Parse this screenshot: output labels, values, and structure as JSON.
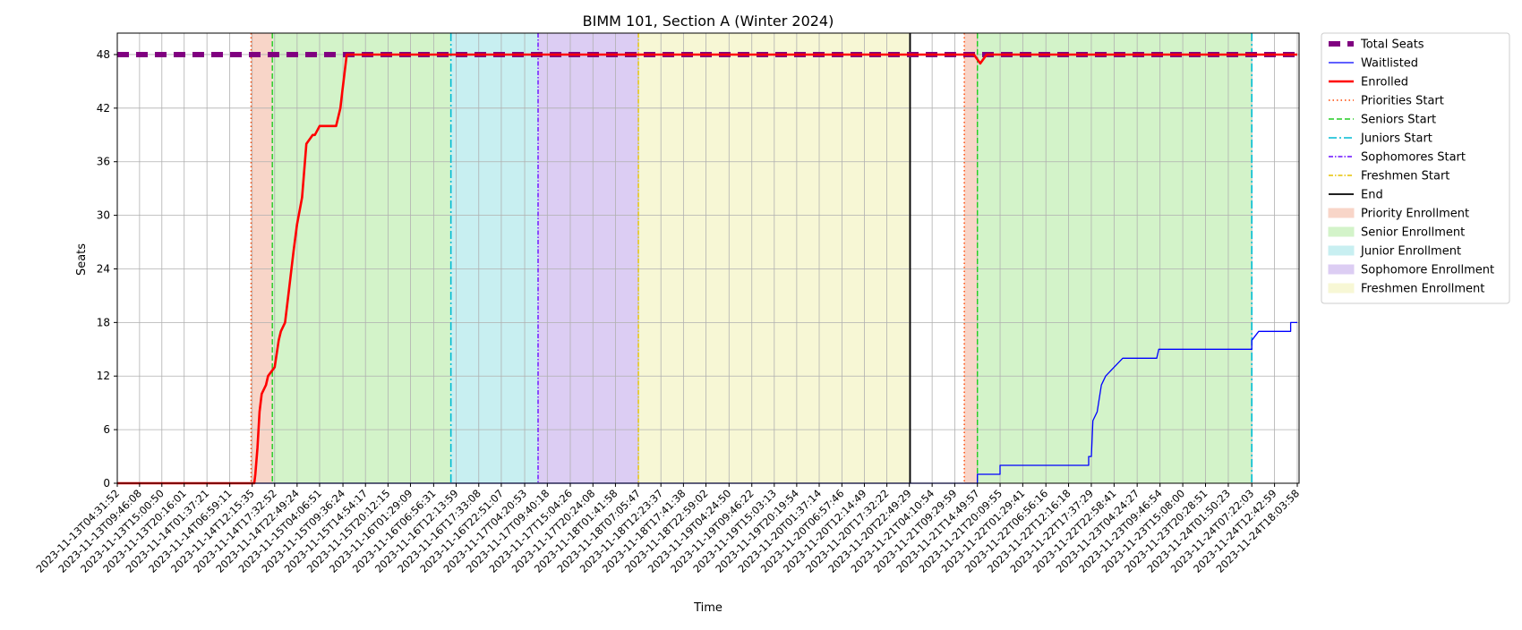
{
  "chart_data": {
    "type": "line",
    "title": "BIMM 101, Section A (Winter 2024)",
    "xlabel": "Time",
    "ylabel": "Seats",
    "ylim": [
      0,
      50.4
    ],
    "yticks": [
      0,
      6,
      12,
      18,
      24,
      30,
      36,
      42,
      48
    ],
    "x_tick_labels": [
      "2023-11-13T04:31:52",
      "2023-11-13T09:46:08",
      "2023-11-13T15:00:50",
      "2023-11-13T20:16:01",
      "2023-11-14T01:37:21",
      "2023-11-14T06:59:11",
      "2023-11-14T12:15:35",
      "2023-11-14T17:32:52",
      "2023-11-14T22:49:24",
      "2023-11-15T04:06:51",
      "2023-11-15T09:36:24",
      "2023-11-15T14:54:17",
      "2023-11-15T20:12:15",
      "2023-11-16T01:29:09",
      "2023-11-16T06:56:31",
      "2023-11-16T12:13:59",
      "2023-11-16T17:33:08",
      "2023-11-16T22:51:07",
      "2023-11-17T04:20:53",
      "2023-11-17T09:40:18",
      "2023-11-17T15:04:26",
      "2023-11-17T20:24:08",
      "2023-11-18T01:41:58",
      "2023-11-18T07:05:47",
      "2023-11-18T12:23:37",
      "2023-11-18T17:41:38",
      "2023-11-18T22:59:02",
      "2023-11-19T04:24:50",
      "2023-11-19T09:46:22",
      "2023-11-19T15:03:13",
      "2023-11-19T20:19:54",
      "2023-11-20T01:37:14",
      "2023-11-20T06:57:46",
      "2023-11-20T12:14:49",
      "2023-11-20T17:32:22",
      "2023-11-20T22:49:29",
      "2023-11-21T04:10:54",
      "2023-11-21T09:29:59",
      "2023-11-21T14:49:57",
      "2023-11-21T20:09:55",
      "2023-11-22T01:29:41",
      "2023-11-22T06:56:16",
      "2023-11-22T12:16:18",
      "2023-11-22T17:37:29",
      "2023-11-22T22:58:41",
      "2023-11-23T04:24:27",
      "2023-11-23T09:46:54",
      "2023-11-23T15:08:00",
      "2023-11-23T20:28:51",
      "2023-11-24T01:50:23",
      "2023-11-24T07:22:03",
      "2023-11-24T12:42:59",
      "2023-11-24T18:03:58"
    ],
    "grid": true,
    "legend_position": "outside-right",
    "series": [
      {
        "name": "Total Seats",
        "color": "#800080",
        "style": "dashed-thick",
        "points": [
          [
            "2023-11-13T04:31:52",
            48
          ],
          [
            "2023-11-24T18:03:58",
            48
          ]
        ]
      },
      {
        "name": "Waitlisted",
        "color": "#0000ff",
        "style": "solid-thin",
        "points": [
          [
            "2023-11-13T04:31:52",
            0
          ],
          [
            "2023-11-21T14:49:57",
            0
          ],
          [
            "2023-11-21T14:49:57",
            1
          ],
          [
            "2023-11-21T20:09:55",
            1
          ],
          [
            "2023-11-21T20:09:55",
            2
          ],
          [
            "2023-11-22T17:00:00",
            2
          ],
          [
            "2023-11-22T17:00:00",
            3
          ],
          [
            "2023-11-22T17:37:29",
            3
          ],
          [
            "2023-11-22T18:00:00",
            7
          ],
          [
            "2023-11-22T19:00:00",
            8
          ],
          [
            "2023-11-22T20:00:00",
            11
          ],
          [
            "2023-11-22T21:00:00",
            12
          ],
          [
            "2023-11-22T22:58:41",
            13
          ],
          [
            "2023-11-23T01:00:00",
            14
          ],
          [
            "2023-11-23T09:00:00",
            14
          ],
          [
            "2023-11-23T09:30:00",
            15
          ],
          [
            "2023-11-24T07:22:03",
            15
          ],
          [
            "2023-11-24T07:22:03",
            16
          ],
          [
            "2023-11-24T09:00:00",
            17
          ],
          [
            "2023-11-24T16:30:00",
            17
          ],
          [
            "2023-11-24T16:30:00",
            18
          ],
          [
            "2023-11-24T18:03:58",
            18
          ]
        ]
      },
      {
        "name": "Enrolled",
        "color": "#ff0000",
        "style": "solid-thick",
        "points": [
          [
            "2023-11-13T04:31:52",
            0
          ],
          [
            "2023-11-14T12:45:00",
            0
          ],
          [
            "2023-11-14T13:00:00",
            1
          ],
          [
            "2023-11-14T13:30:00",
            4
          ],
          [
            "2023-11-14T14:00:00",
            8
          ],
          [
            "2023-11-14T14:30:00",
            10
          ],
          [
            "2023-11-14T15:30:00",
            11
          ],
          [
            "2023-11-14T16:00:00",
            12
          ],
          [
            "2023-11-14T17:32:52",
            13
          ],
          [
            "2023-11-14T18:30:00",
            16
          ],
          [
            "2023-11-14T19:00:00",
            17
          ],
          [
            "2023-11-14T20:00:00",
            18
          ],
          [
            "2023-11-14T21:00:00",
            22
          ],
          [
            "2023-11-14T22:00:00",
            26
          ],
          [
            "2023-11-14T22:49:24",
            29
          ],
          [
            "2023-11-15T00:00:00",
            32
          ],
          [
            "2023-11-15T01:00:00",
            38
          ],
          [
            "2023-11-15T02:30:00",
            39
          ],
          [
            "2023-11-15T03:00:00",
            39
          ],
          [
            "2023-11-15T04:06:51",
            40
          ],
          [
            "2023-11-15T05:00:00",
            40
          ],
          [
            "2023-11-15T08:00:00",
            40
          ],
          [
            "2023-11-15T09:00:00",
            42
          ],
          [
            "2023-11-15T09:30:00",
            44
          ],
          [
            "2023-11-15T10:30:00",
            48
          ],
          [
            "2023-11-21T14:00:00",
            48
          ],
          [
            "2023-11-21T15:30:00",
            47
          ],
          [
            "2023-11-21T17:00:00",
            48
          ],
          [
            "2023-11-24T18:03:58",
            48
          ]
        ]
      }
    ],
    "vertical_lines": [
      {
        "name": "Priorities Start",
        "color": "#ff4500",
        "style": "dotted",
        "x": [
          "2023-11-14T12:00:00",
          "2023-11-21T11:45:00"
        ]
      },
      {
        "name": "Seniors Start",
        "color": "#22cc22",
        "style": "dashed",
        "x": [
          "2023-11-14T17:00:00",
          "2023-11-21T14:49:57"
        ]
      },
      {
        "name": "Juniors Start",
        "color": "#00bcd4",
        "style": "dashdot",
        "x": [
          "2023-11-16T11:00:00",
          "2023-11-24T07:22:03"
        ]
      },
      {
        "name": "Sophomores Start",
        "color": "#6a0dff",
        "style": "dashdot-dense",
        "x": [
          "2023-11-17T07:30:00"
        ]
      },
      {
        "name": "Freshmen Start",
        "color": "#e6c200",
        "style": "dashdot-dense",
        "x": [
          "2023-11-18T07:05:47"
        ]
      },
      {
        "name": "End",
        "color": "#000000",
        "style": "solid",
        "x": [
          "2023-11-20T23:00:00"
        ]
      }
    ],
    "shaded_regions": [
      {
        "name": "Priority Enrollment",
        "color": "#f8d5c8",
        "ranges": [
          [
            "2023-11-14T12:00:00",
            "2023-11-14T17:00:00"
          ],
          [
            "2023-11-21T11:45:00",
            "2023-11-21T14:49:57"
          ]
        ]
      },
      {
        "name": "Senior Enrollment",
        "color": "#d3f3c9",
        "ranges": [
          [
            "2023-11-14T17:00:00",
            "2023-11-16T11:00:00"
          ],
          [
            "2023-11-21T14:49:57",
            "2023-11-24T07:22:03"
          ]
        ]
      },
      {
        "name": "Junior Enrollment",
        "color": "#c8eff1",
        "ranges": [
          [
            "2023-11-16T11:00:00",
            "2023-11-17T07:30:00"
          ]
        ]
      },
      {
        "name": "Sophomore Enrollment",
        "color": "#dccdf3",
        "ranges": [
          [
            "2023-11-17T07:30:00",
            "2023-11-18T07:05:47"
          ]
        ]
      },
      {
        "name": "Freshmen Enrollment",
        "color": "#f7f7d5",
        "ranges": [
          [
            "2023-11-18T07:05:47",
            "2023-11-20T23:00:00"
          ]
        ]
      }
    ],
    "legend": [
      {
        "label": "Total Seats",
        "kind": "line",
        "color": "#800080",
        "style": "dashed-thick"
      },
      {
        "label": "Waitlisted",
        "kind": "line",
        "color": "#0000ff",
        "style": "solid-thin"
      },
      {
        "label": "Enrolled",
        "kind": "line",
        "color": "#ff0000",
        "style": "solid-thick"
      },
      {
        "label": "Priorities Start",
        "kind": "line",
        "color": "#ff4500",
        "style": "dotted"
      },
      {
        "label": "Seniors Start",
        "kind": "line",
        "color": "#22cc22",
        "style": "dashed"
      },
      {
        "label": "Juniors Start",
        "kind": "line",
        "color": "#00bcd4",
        "style": "dashdot"
      },
      {
        "label": "Sophomores Start",
        "kind": "line",
        "color": "#6a0dff",
        "style": "dashdot-dense"
      },
      {
        "label": "Freshmen Start",
        "kind": "line",
        "color": "#e6c200",
        "style": "dashdot-dense"
      },
      {
        "label": "End",
        "kind": "line",
        "color": "#000000",
        "style": "solid"
      },
      {
        "label": "Priority Enrollment",
        "kind": "patch",
        "color": "#f8d5c8"
      },
      {
        "label": "Senior Enrollment",
        "kind": "patch",
        "color": "#d3f3c9"
      },
      {
        "label": "Junior Enrollment",
        "kind": "patch",
        "color": "#c8eff1"
      },
      {
        "label": "Sophomore Enrollment",
        "kind": "patch",
        "color": "#dccdf3"
      },
      {
        "label": "Freshmen Enrollment",
        "kind": "patch",
        "color": "#f7f7d5"
      }
    ]
  }
}
